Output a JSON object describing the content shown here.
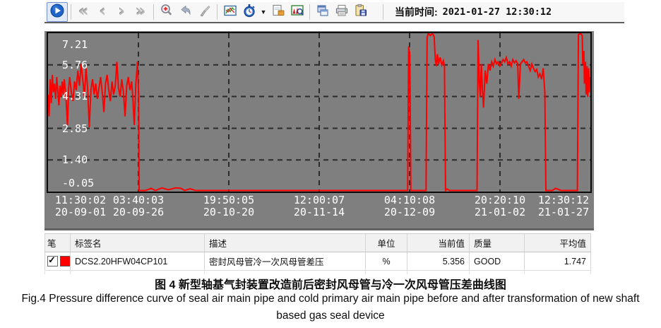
{
  "toolbar": {
    "icons": [
      "play",
      "fast-backward",
      "step-backward",
      "step-forward",
      "fast-forward",
      "zoom-in",
      "undo",
      "clear",
      "trend-chart",
      "time-range",
      "dropdown",
      "export-image",
      "chart-search",
      "window-layout",
      "print",
      "save"
    ],
    "nav": {
      "fast_back": "«",
      "back": "‹",
      "forward": "›",
      "fast_forward": "»"
    },
    "current_time_label": "当前时间:",
    "current_time_value": "2021-01-27 12:30:12"
  },
  "chart_data": {
    "type": "line",
    "title": "",
    "xlabel": "",
    "ylabel": "",
    "plot_bg": "#7f7f7f",
    "grid": "dashed",
    "legend_position": "none",
    "ylim": [
      -0.05,
      7.21
    ],
    "y_ticks": [
      7.21,
      5.76,
      4.31,
      2.85,
      1.4,
      -0.05
    ],
    "x_ticks": [
      {
        "time": "11:30:02",
        "date": "20-09-01"
      },
      {
        "time": "03:40:03",
        "date": "20-09-26"
      },
      {
        "time": "19:50:05",
        "date": "20-10-20"
      },
      {
        "time": "12:00:07",
        "date": "20-11-14"
      },
      {
        "time": "04:10:08",
        "date": "20-12-09"
      },
      {
        "time": "20:20:10",
        "date": "21-01-02"
      },
      {
        "time": "12:30:12",
        "date": "21-01-27"
      }
    ],
    "series": [
      {
        "name": "DCS2.20HFW04CP101",
        "unit": "%",
        "color": "#ff0000",
        "points": [
          [
            0.0,
            4.4
          ],
          [
            0.002,
            3.4
          ],
          [
            0.004,
            5.1
          ],
          [
            0.006,
            4.0
          ],
          [
            0.008,
            5.3
          ],
          [
            0.01,
            4.5
          ],
          [
            0.012,
            4.9
          ],
          [
            0.014,
            4.2
          ],
          [
            0.016,
            5.2
          ],
          [
            0.018,
            4.6
          ],
          [
            0.02,
            3.9
          ],
          [
            0.022,
            4.8
          ],
          [
            0.024,
            4.3
          ],
          [
            0.026,
            5.0
          ],
          [
            0.028,
            4.4
          ],
          [
            0.03,
            5.1
          ],
          [
            0.033,
            4.3
          ],
          [
            0.036,
            3.0
          ],
          [
            0.038,
            4.7
          ],
          [
            0.04,
            5.2
          ],
          [
            0.043,
            4.5
          ],
          [
            0.046,
            4.1
          ],
          [
            0.049,
            5.0
          ],
          [
            0.052,
            4.6
          ],
          [
            0.055,
            5.5
          ],
          [
            0.058,
            4.8
          ],
          [
            0.061,
            5.8
          ],
          [
            0.064,
            5.1
          ],
          [
            0.067,
            4.3
          ],
          [
            0.07,
            5.6
          ],
          [
            0.073,
            4.7
          ],
          [
            0.076,
            2.9
          ],
          [
            0.079,
            4.6
          ],
          [
            0.082,
            5.1
          ],
          [
            0.085,
            4.4
          ],
          [
            0.088,
            4.9
          ],
          [
            0.091,
            4.2
          ],
          [
            0.094,
            4.7
          ],
          [
            0.097,
            5.2
          ],
          [
            0.1,
            4.5
          ],
          [
            0.103,
            3.6
          ],
          [
            0.106,
            4.9
          ],
          [
            0.109,
            5.3
          ],
          [
            0.112,
            4.6
          ],
          [
            0.115,
            4.1
          ],
          [
            0.118,
            5.0
          ],
          [
            0.121,
            4.4
          ],
          [
            0.124,
            4.8
          ],
          [
            0.127,
            5.9
          ],
          [
            0.13,
            4.7
          ],
          [
            0.133,
            4.3
          ],
          [
            0.136,
            5.1
          ],
          [
            0.139,
            4.5
          ],
          [
            0.142,
            3.4
          ],
          [
            0.145,
            4.8
          ],
          [
            0.148,
            5.2
          ],
          [
            0.151,
            4.6
          ],
          [
            0.154,
            5.0
          ],
          [
            0.156,
            4.4
          ],
          [
            0.159,
            3.0
          ],
          [
            0.162,
            4.9
          ],
          [
            0.165,
            5.9
          ],
          [
            0.167,
            4.4
          ],
          [
            0.168,
            0.0
          ],
          [
            0.18,
            0.0
          ],
          [
            0.19,
            0.1
          ],
          [
            0.198,
            0.0
          ],
          [
            0.21,
            0.12
          ],
          [
            0.222,
            0.03
          ],
          [
            0.235,
            0.12
          ],
          [
            0.245,
            0.1
          ],
          [
            0.252,
            0.0
          ],
          [
            0.262,
            0.08
          ],
          [
            0.272,
            0.0
          ],
          [
            0.4,
            0.0
          ],
          [
            0.55,
            0.0
          ],
          [
            0.663,
            0.0
          ],
          [
            0.665,
            6.6
          ],
          [
            0.667,
            6.2
          ],
          [
            0.669,
            0.0
          ],
          [
            0.697,
            0.0
          ],
          [
            0.699,
            7.0
          ],
          [
            0.701,
            7.2
          ],
          [
            0.705,
            7.1
          ],
          [
            0.709,
            7.2
          ],
          [
            0.712,
            7.05
          ],
          [
            0.714,
            6.0
          ],
          [
            0.716,
            5.7
          ],
          [
            0.718,
            6.25
          ],
          [
            0.72,
            5.8
          ],
          [
            0.723,
            6.1
          ],
          [
            0.726,
            5.75
          ],
          [
            0.729,
            5.95
          ],
          [
            0.731,
            5.7
          ],
          [
            0.733,
            0.0
          ],
          [
            0.736,
            0.07
          ],
          [
            0.74,
            0.0
          ],
          [
            0.791,
            0.0
          ],
          [
            0.793,
            6.9
          ],
          [
            0.795,
            5.1
          ],
          [
            0.797,
            4.3
          ],
          [
            0.799,
            5.8
          ],
          [
            0.801,
            4.6
          ],
          [
            0.803,
            3.8
          ],
          [
            0.806,
            5.5
          ],
          [
            0.809,
            4.9
          ],
          [
            0.812,
            5.8
          ],
          [
            0.815,
            5.5
          ],
          [
            0.818,
            5.9
          ],
          [
            0.821,
            5.7
          ],
          [
            0.824,
            6.0
          ],
          [
            0.827,
            5.8
          ],
          [
            0.83,
            5.9
          ],
          [
            0.833,
            5.7
          ],
          [
            0.836,
            5.85
          ],
          [
            0.839,
            6.0
          ],
          [
            0.842,
            5.9
          ],
          [
            0.845,
            6.1
          ],
          [
            0.848,
            5.8
          ],
          [
            0.851,
            5.9
          ],
          [
            0.854,
            5.7
          ],
          [
            0.857,
            6.0
          ],
          [
            0.86,
            5.85
          ],
          [
            0.863,
            5.95
          ],
          [
            0.866,
            5.8
          ],
          [
            0.868,
            4.2
          ],
          [
            0.871,
            5.8
          ],
          [
            0.874,
            5.9
          ],
          [
            0.877,
            6.0
          ],
          [
            0.88,
            5.85
          ],
          [
            0.883,
            5.9
          ],
          [
            0.886,
            5.7
          ],
          [
            0.889,
            5.5
          ],
          [
            0.892,
            5.8
          ],
          [
            0.895,
            5.6
          ],
          [
            0.898,
            5.45
          ],
          [
            0.901,
            5.55
          ],
          [
            0.904,
            5.2
          ],
          [
            0.907,
            5.35
          ],
          [
            0.91,
            5.1
          ],
          [
            0.913,
            5.6
          ],
          [
            0.916,
            4.5
          ],
          [
            0.918,
            0.0
          ],
          [
            0.93,
            0.0
          ],
          [
            0.936,
            0.1
          ],
          [
            0.941,
            0.05
          ],
          [
            0.946,
            0.0
          ],
          [
            0.976,
            0.0
          ],
          [
            0.978,
            7.15
          ],
          [
            0.982,
            7.2
          ],
          [
            0.985,
            7.1
          ],
          [
            0.986,
            5.8
          ],
          [
            0.988,
            6.4
          ],
          [
            0.989,
            4.9
          ],
          [
            0.991,
            5.9
          ],
          [
            0.992,
            4.4
          ],
          [
            0.994,
            5.7
          ],
          [
            0.995,
            4.3
          ],
          [
            0.997,
            5.6
          ],
          [
            0.998,
            4.5
          ],
          [
            1.0,
            5.2
          ]
        ]
      }
    ]
  },
  "table": {
    "headers": [
      "笔",
      "标签名",
      "描述",
      "单位",
      "当前值",
      "质量",
      "平均值"
    ],
    "rows": [
      {
        "checked": true,
        "pen_color": "#ff0000",
        "tag": "DCS2.20HFW04CP101",
        "desc": "密封风母管冷一次风母管差压",
        "unit": "%",
        "current": "5.356",
        "quality": "GOOD",
        "average": "1.747"
      }
    ]
  },
  "caption": {
    "zh": "图 4 新型轴基气封装置改造前后密封风母管与冷一次风母管压差曲线图",
    "en_lines": [
      "Fig.4 Pressure difference curve of seal air main pipe and cold primary air main pipe before and after transformation of new shaft",
      "based gas seal device"
    ]
  }
}
